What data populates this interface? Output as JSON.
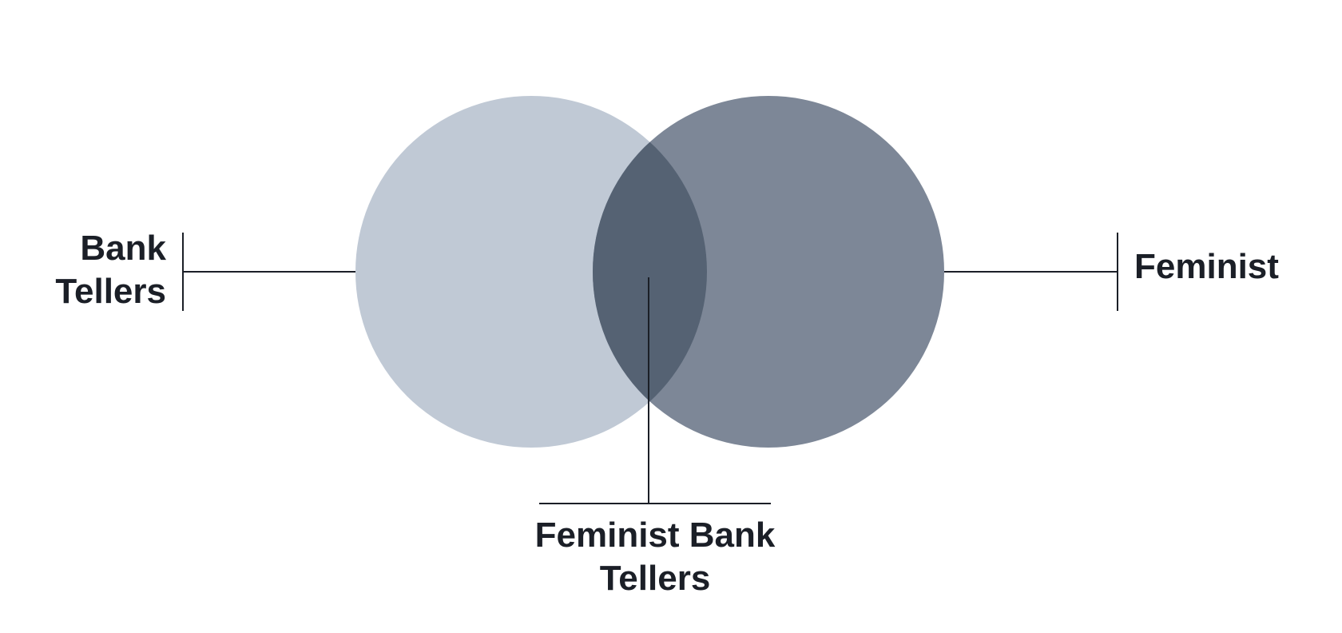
{
  "diagram": {
    "type": "venn",
    "sets": [
      {
        "id": "bank-tellers",
        "label_lines": [
          "Bank",
          "Tellers"
        ],
        "color": "#c0c9d5"
      },
      {
        "id": "feminist",
        "label_lines": [
          "Feminist"
        ],
        "color": "#7d8797"
      }
    ],
    "intersection": {
      "label_lines": [
        "Feminist Bank",
        "Tellers"
      ],
      "color": "#556273"
    },
    "text_color": "#1b1f27",
    "line_color": "#1b1f27"
  }
}
